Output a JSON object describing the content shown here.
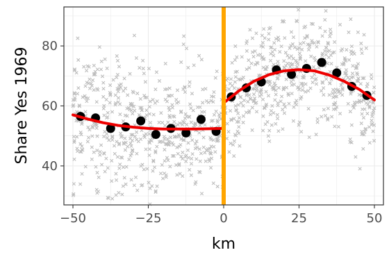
{
  "chart_data": {
    "type": "scatter",
    "title": "",
    "xlabel": "km",
    "ylabel": "Share Yes 1969",
    "xlim": [
      -53,
      53
    ],
    "ylim": [
      27,
      93
    ],
    "xticks": [
      -50,
      -25,
      0,
      25,
      50
    ],
    "xtick_labels": [
      "−50",
      "−25",
      "0",
      "25",
      "50"
    ],
    "yticks": [
      40,
      60,
      80
    ],
    "ytick_labels": [
      "40",
      "60",
      "80"
    ],
    "grid": true,
    "cutoff": 0,
    "series": [
      {
        "kind": "raw",
        "marker": "x",
        "color": "#bdbdbd",
        "raw_seed": 7,
        "raw_n_per_side": 560
      },
      {
        "kind": "binned_means",
        "marker": "circle",
        "color": "#000000",
        "x": [
          -47.5,
          -42.5,
          -37.5,
          -32.5,
          -27.5,
          -22.5,
          -17.5,
          -12.5,
          -7.5,
          -2.5,
          2.5,
          7.5,
          12.5,
          17.5,
          22.5,
          27.5,
          32.5,
          37.5,
          42.5,
          47.5
        ],
        "y": [
          56.5,
          56,
          52.5,
          53,
          55,
          50.5,
          52.5,
          51,
          55.5,
          51.5,
          63,
          66,
          68,
          72,
          70.5,
          72.5,
          74.5,
          71,
          66.5,
          63.5
        ]
      },
      {
        "kind": "fit_left",
        "color": "#ee0000",
        "x": [
          -50,
          -45,
          -40,
          -35,
          -30,
          -25,
          -20,
          -15,
          -10,
          -5,
          0
        ],
        "y": [
          57,
          55.6,
          54.4,
          53.5,
          52.9,
          52.5,
          52.3,
          52.3,
          52.3,
          52.4,
          52.5
        ]
      },
      {
        "kind": "fit_right",
        "color": "#ee0000",
        "x": [
          0,
          5,
          10,
          15,
          20,
          25,
          30,
          35,
          40,
          45,
          50
        ],
        "y": [
          61,
          65,
          68.2,
          70.4,
          71.7,
          72.1,
          71.7,
          70.3,
          68.2,
          65.5,
          62
        ]
      }
    ],
    "cutoff_color": "#ffa500"
  }
}
